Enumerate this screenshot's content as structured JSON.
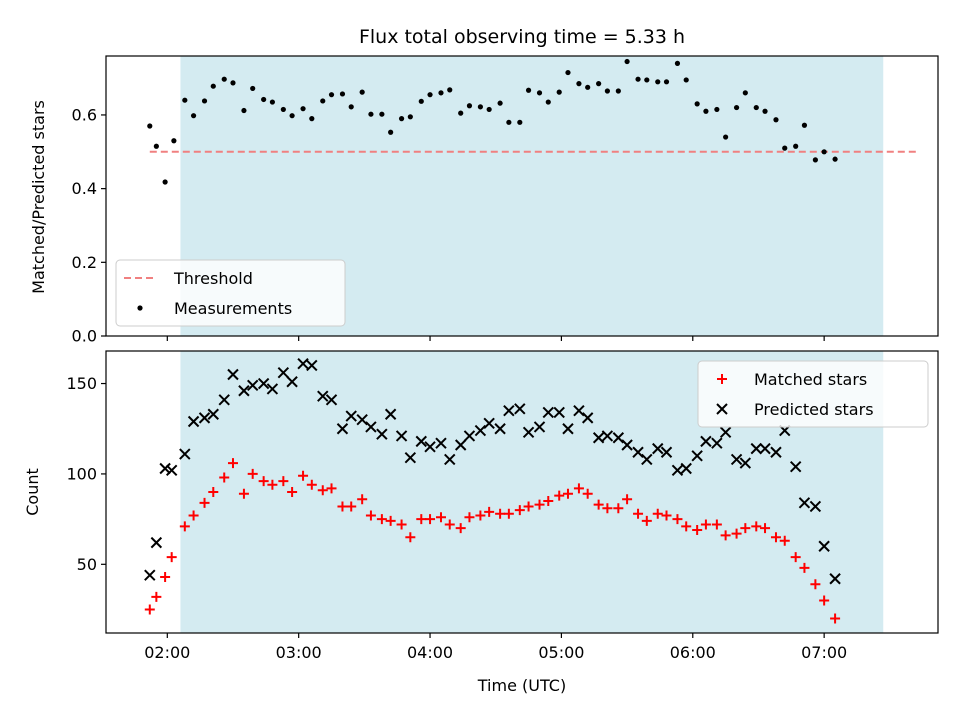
{
  "chart_data": [
    {
      "type": "scatter",
      "title": "Flux total observing time = 5.33 h",
      "xlabel": "",
      "ylabel": "Matched/Predicted stars",
      "ylim": [
        0,
        0.76
      ],
      "yticks": [
        0.0,
        0.2,
        0.4,
        0.6
      ],
      "ytick_labels": [
        "0.0",
        "0.2",
        "0.4",
        "0.6"
      ],
      "xlim": [
        "01:32",
        "07:52"
      ],
      "xticks": [
        "02:00",
        "03:00",
        "04:00",
        "05:00",
        "06:00",
        "07:00"
      ],
      "shaded_span": [
        "02:06",
        "07:27"
      ],
      "shade_color": "#d4ebf1",
      "legend_position": "lower-left",
      "threshold": {
        "name": "Threshold",
        "value": 0.5,
        "x_range": [
          "01:52",
          "07:43"
        ],
        "color": "#f08080"
      },
      "series": [
        {
          "name": "Measurements",
          "color": "#000000",
          "marker": "dot",
          "points": [
            [
              "01:52",
              0.57
            ],
            [
              "01:55",
              0.515
            ],
            [
              "01:59",
              0.418
            ],
            [
              "02:03",
              0.53
            ],
            [
              "02:08",
              0.64
            ],
            [
              "02:12",
              0.598
            ],
            [
              "02:17",
              0.638
            ],
            [
              "02:21",
              0.678
            ],
            [
              "02:26",
              0.697
            ],
            [
              "02:30",
              0.687
            ],
            [
              "02:35",
              0.612
            ],
            [
              "02:39",
              0.672
            ],
            [
              "02:44",
              0.642
            ],
            [
              "02:48",
              0.635
            ],
            [
              "02:53",
              0.615
            ],
            [
              "02:57",
              0.598
            ],
            [
              "03:02",
              0.617
            ],
            [
              "03:06",
              0.59
            ],
            [
              "03:11",
              0.638
            ],
            [
              "03:15",
              0.655
            ],
            [
              "03:20",
              0.657
            ],
            [
              "03:24",
              0.622
            ],
            [
              "03:29",
              0.662
            ],
            [
              "03:33",
              0.602
            ],
            [
              "03:38",
              0.602
            ],
            [
              "03:42",
              0.553
            ],
            [
              "03:47",
              0.59
            ],
            [
              "03:51",
              0.595
            ],
            [
              "03:56",
              0.637
            ],
            [
              "04:00",
              0.655
            ],
            [
              "04:05",
              0.66
            ],
            [
              "04:09",
              0.668
            ],
            [
              "04:14",
              0.605
            ],
            [
              "04:18",
              0.625
            ],
            [
              "04:23",
              0.622
            ],
            [
              "04:27",
              0.615
            ],
            [
              "04:32",
              0.632
            ],
            [
              "04:36",
              0.58
            ],
            [
              "04:41",
              0.58
            ],
            [
              "04:45",
              0.667
            ],
            [
              "04:50",
              0.66
            ],
            [
              "04:54",
              0.635
            ],
            [
              "04:59",
              0.662
            ],
            [
              "05:03",
              0.715
            ],
            [
              "05:08",
              0.685
            ],
            [
              "05:12",
              0.675
            ],
            [
              "05:17",
              0.685
            ],
            [
              "05:21",
              0.665
            ],
            [
              "05:26",
              0.665
            ],
            [
              "05:30",
              0.745
            ],
            [
              "05:35",
              0.697
            ],
            [
              "05:39",
              0.695
            ],
            [
              "05:44",
              0.69
            ],
            [
              "05:48",
              0.69
            ],
            [
              "05:53",
              0.74
            ],
            [
              "05:57",
              0.695
            ],
            [
              "06:02",
              0.63
            ],
            [
              "06:06",
              0.61
            ],
            [
              "06:11",
              0.615
            ],
            [
              "06:15",
              0.54
            ],
            [
              "06:20",
              0.62
            ],
            [
              "06:24",
              0.66
            ],
            [
              "06:29",
              0.62
            ],
            [
              "06:33",
              0.61
            ],
            [
              "06:38",
              0.587
            ],
            [
              "06:42",
              0.51
            ],
            [
              "06:47",
              0.515
            ],
            [
              "06:51",
              0.572
            ],
            [
              "06:56",
              0.478
            ],
            [
              "07:00",
              0.5
            ],
            [
              "07:05",
              0.48
            ]
          ]
        }
      ]
    },
    {
      "type": "scatter",
      "title": "",
      "xlabel": "Time (UTC)",
      "ylabel": "Count",
      "ylim": [
        12,
        168
      ],
      "yticks": [
        50,
        100,
        150
      ],
      "ytick_labels": [
        "50",
        "100",
        "150"
      ],
      "xlim": [
        "01:32",
        "07:52"
      ],
      "xticks": [
        "02:00",
        "03:00",
        "04:00",
        "05:00",
        "06:00",
        "07:00"
      ],
      "xtick_labels": [
        "02:00",
        "03:00",
        "04:00",
        "05:00",
        "06:00",
        "07:00"
      ],
      "shaded_span": [
        "02:06",
        "07:27"
      ],
      "shade_color": "#d4ebf1",
      "legend_position": "upper-right",
      "series": [
        {
          "name": "Matched stars",
          "color": "#ff0000",
          "marker": "plus",
          "points": [
            [
              "01:52",
              25
            ],
            [
              "01:55",
              32
            ],
            [
              "01:59",
              43
            ],
            [
              "02:02",
              54
            ],
            [
              "02:08",
              71
            ],
            [
              "02:12",
              77
            ],
            [
              "02:17",
              84
            ],
            [
              "02:21",
              90
            ],
            [
              "02:26",
              98
            ],
            [
              "02:30",
              106
            ],
            [
              "02:35",
              89
            ],
            [
              "02:39",
              100
            ],
            [
              "02:44",
              96
            ],
            [
              "02:48",
              94
            ],
            [
              "02:53",
              96
            ],
            [
              "02:57",
              90
            ],
            [
              "03:02",
              99
            ],
            [
              "03:06",
              94
            ],
            [
              "03:11",
              91
            ],
            [
              "03:15",
              92
            ],
            [
              "03:20",
              82
            ],
            [
              "03:24",
              82
            ],
            [
              "03:29",
              86
            ],
            [
              "03:33",
              77
            ],
            [
              "03:38",
              75
            ],
            [
              "03:42",
              74
            ],
            [
              "03:47",
              72
            ],
            [
              "03:51",
              65
            ],
            [
              "03:56",
              75
            ],
            [
              "04:00",
              75
            ],
            [
              "04:05",
              76
            ],
            [
              "04:09",
              72
            ],
            [
              "04:14",
              70
            ],
            [
              "04:18",
              76
            ],
            [
              "04:23",
              77
            ],
            [
              "04:27",
              79
            ],
            [
              "04:32",
              78
            ],
            [
              "04:36",
              78
            ],
            [
              "04:41",
              80
            ],
            [
              "04:45",
              82
            ],
            [
              "04:50",
              83
            ],
            [
              "04:54",
              85
            ],
            [
              "04:59",
              88
            ],
            [
              "05:03",
              89
            ],
            [
              "05:08",
              92
            ],
            [
              "05:12",
              89
            ],
            [
              "05:17",
              83
            ],
            [
              "05:21",
              81
            ],
            [
              "05:26",
              81
            ],
            [
              "05:30",
              86
            ],
            [
              "05:35",
              78
            ],
            [
              "05:39",
              74
            ],
            [
              "05:44",
              78
            ],
            [
              "05:48",
              77
            ],
            [
              "05:53",
              75
            ],
            [
              "05:57",
              71
            ],
            [
              "06:02",
              69
            ],
            [
              "06:06",
              72
            ],
            [
              "06:11",
              72
            ],
            [
              "06:15",
              66
            ],
            [
              "06:20",
              67
            ],
            [
              "06:24",
              70
            ],
            [
              "06:29",
              71
            ],
            [
              "06:33",
              70
            ],
            [
              "06:38",
              65
            ],
            [
              "06:42",
              63
            ],
            [
              "06:47",
              54
            ],
            [
              "06:51",
              48
            ],
            [
              "06:56",
              39
            ],
            [
              "07:00",
              30
            ],
            [
              "07:05",
              20
            ]
          ]
        },
        {
          "name": "Predicted stars",
          "color": "#000000",
          "marker": "x",
          "points": [
            [
              "01:52",
              44
            ],
            [
              "01:55",
              62
            ],
            [
              "01:59",
              103
            ],
            [
              "02:02",
              102
            ],
            [
              "02:08",
              111
            ],
            [
              "02:12",
              129
            ],
            [
              "02:17",
              131
            ],
            [
              "02:21",
              133
            ],
            [
              "02:26",
              141
            ],
            [
              "02:30",
              155
            ],
            [
              "02:35",
              146
            ],
            [
              "02:39",
              149
            ],
            [
              "02:44",
              150
            ],
            [
              "02:48",
              147
            ],
            [
              "02:53",
              156
            ],
            [
              "02:57",
              151
            ],
            [
              "03:02",
              161
            ],
            [
              "03:06",
              160
            ],
            [
              "03:11",
              143
            ],
            [
              "03:15",
              141
            ],
            [
              "03:20",
              125
            ],
            [
              "03:24",
              132
            ],
            [
              "03:29",
              130
            ],
            [
              "03:33",
              126
            ],
            [
              "03:38",
              122
            ],
            [
              "03:42",
              133
            ],
            [
              "03:47",
              121
            ],
            [
              "03:51",
              109
            ],
            [
              "03:56",
              118
            ],
            [
              "04:00",
              115
            ],
            [
              "04:05",
              117
            ],
            [
              "04:09",
              108
            ],
            [
              "04:14",
              116
            ],
            [
              "04:18",
              121
            ],
            [
              "04:23",
              124
            ],
            [
              "04:27",
              128
            ],
            [
              "04:32",
              125
            ],
            [
              "04:36",
              135
            ],
            [
              "04:41",
              136
            ],
            [
              "04:45",
              123
            ],
            [
              "04:50",
              126
            ],
            [
              "04:54",
              134
            ],
            [
              "04:59",
              134
            ],
            [
              "05:03",
              125
            ],
            [
              "05:08",
              135
            ],
            [
              "05:12",
              131
            ],
            [
              "05:17",
              120
            ],
            [
              "05:21",
              121
            ],
            [
              "05:26",
              120
            ],
            [
              "05:30",
              116
            ],
            [
              "05:35",
              112
            ],
            [
              "05:39",
              108
            ],
            [
              "05:44",
              114
            ],
            [
              "05:48",
              112
            ],
            [
              "05:53",
              102
            ],
            [
              "05:57",
              103
            ],
            [
              "06:02",
              110
            ],
            [
              "06:06",
              118
            ],
            [
              "06:11",
              117
            ],
            [
              "06:15",
              123
            ],
            [
              "06:20",
              108
            ],
            [
              "06:24",
              106
            ],
            [
              "06:29",
              114
            ],
            [
              "06:33",
              114
            ],
            [
              "06:38",
              112
            ],
            [
              "06:42",
              124
            ],
            [
              "06:47",
              104
            ],
            [
              "06:51",
              84
            ],
            [
              "06:56",
              82
            ],
            [
              "07:00",
              60
            ],
            [
              "07:05",
              42
            ]
          ]
        }
      ]
    }
  ]
}
